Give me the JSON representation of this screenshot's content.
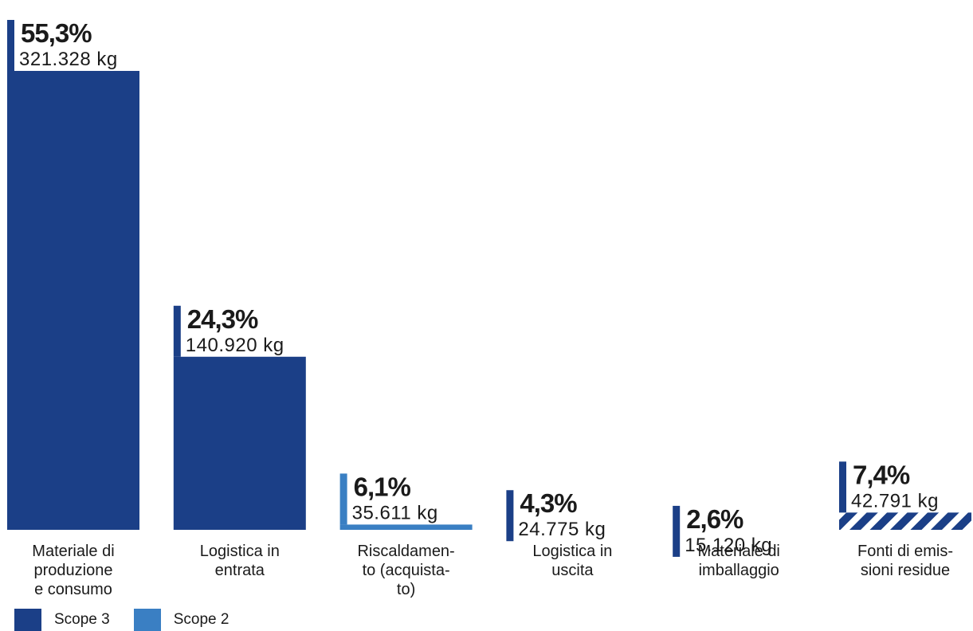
{
  "chart_data": {
    "type": "bar",
    "categories": [
      [
        "Materiale di",
        "produzione",
        "e consumo"
      ],
      [
        "Logistica in",
        "entrata"
      ],
      [
        "Riscaldamen-",
        "to (acquista-",
        "to)"
      ],
      [
        "Logistica in",
        "uscita"
      ],
      [
        "Materiale di",
        "imballaggio"
      ],
      [
        "Fonti di emis-",
        "sioni residue"
      ]
    ],
    "values": [
      55.3,
      24.3,
      6.1,
      4.3,
      2.6,
      7.4
    ],
    "percent_labels": [
      "55,3%",
      "24,3%",
      "6,1%",
      "4,3%",
      "2,6%",
      "7,4%"
    ],
    "kg_labels": [
      "321.328 kg",
      "140.920 kg",
      "35.611 kg",
      "24.775 kg",
      "15.120 kg",
      "42.791 kg"
    ],
    "scope": [
      "Scope 3",
      "Scope 3",
      "Scope 2",
      "Scope 3",
      "Scope 3",
      "Scope 3"
    ],
    "fill": [
      "solid",
      "solid",
      "solid",
      "solid",
      "solid",
      "hatched"
    ],
    "colors": {
      "Scope 3": "#1b3f87",
      "Scope 2": "#3a7fc3"
    },
    "ylim": [
      0,
      60
    ],
    "grid": false,
    "legend_position": "bottom-left"
  },
  "legend": {
    "items": [
      {
        "label": "Scope 3",
        "color": "#1b3f87"
      },
      {
        "label": "Scope 2",
        "color": "#3a7fc3"
      }
    ]
  }
}
